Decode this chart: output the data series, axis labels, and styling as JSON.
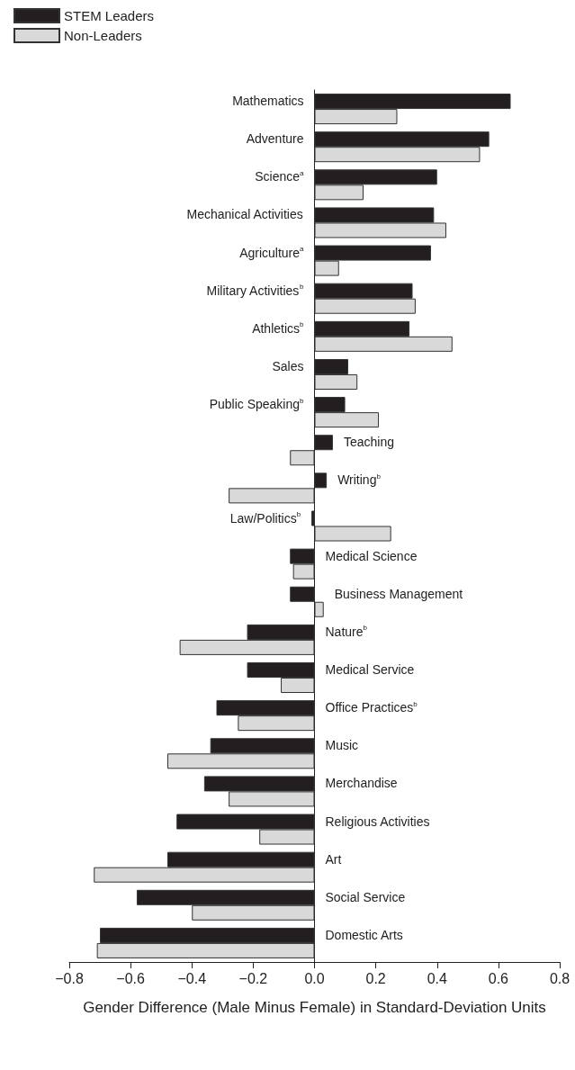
{
  "chart_data": {
    "type": "bar",
    "orientation": "horizontal",
    "xlabel": "Gender Difference (Male Minus Female) in Standard-Deviation Units",
    "categories": [
      "Mathematics",
      "Adventure",
      "Science$^{a}$",
      "Mechanical Activities",
      "Agriculture$^{a}$",
      "Military Activities$^{b}$",
      "Athletics$^{b}$",
      "Sales",
      "Public Speaking$^{b}$",
      "Teaching",
      "Writing$^{b}$",
      "Law/Politics$^{b}$",
      "Medical Science",
      "Business Management",
      "Nature$^{b}$",
      "Medical Service",
      "Office Practices$^{b}$",
      "Music",
      "Merchandise",
      "Religious Activities",
      "Art",
      "Social Service",
      "Domestic Arts"
    ],
    "series": [
      {
        "name": "STEM Leaders",
        "color": "#231f20",
        "values": [
          0.64,
          0.57,
          0.4,
          0.39,
          0.38,
          0.32,
          0.31,
          0.11,
          0.1,
          0.06,
          0.04,
          -0.01,
          -0.08,
          -0.08,
          -0.22,
          -0.22,
          -0.32,
          -0.34,
          -0.36,
          -0.45,
          -0.48,
          -0.58,
          -0.7
        ]
      },
      {
        "name": "Non-Leaders",
        "color": "#d9d9d9",
        "values": [
          0.27,
          0.54,
          0.16,
          0.43,
          0.08,
          0.33,
          0.45,
          0.14,
          0.21,
          -0.08,
          -0.28,
          0.25,
          -0.07,
          0.03,
          -0.44,
          -0.11,
          -0.25,
          -0.48,
          -0.28,
          -0.18,
          -0.72,
          -0.4,
          -0.71
        ]
      }
    ],
    "xlim": [
      -0.8,
      0.8
    ],
    "xticks": [
      {
        "value": -0.8,
        "label": "−0.8"
      },
      {
        "value": -0.6,
        "label": "−0.6"
      },
      {
        "value": -0.4,
        "label": "−0.4"
      },
      {
        "value": -0.2,
        "label": "−0.2"
      },
      {
        "value": 0,
        "label": "0.0"
      },
      {
        "value": 0.2,
        "label": "0.2"
      },
      {
        "value": 0.4,
        "label": "0.4"
      },
      {
        "value": 0.6,
        "label": "0.6"
      },
      {
        "value": 0.8,
        "label": "0.8"
      }
    ],
    "grid": false,
    "legend": "top left"
  }
}
